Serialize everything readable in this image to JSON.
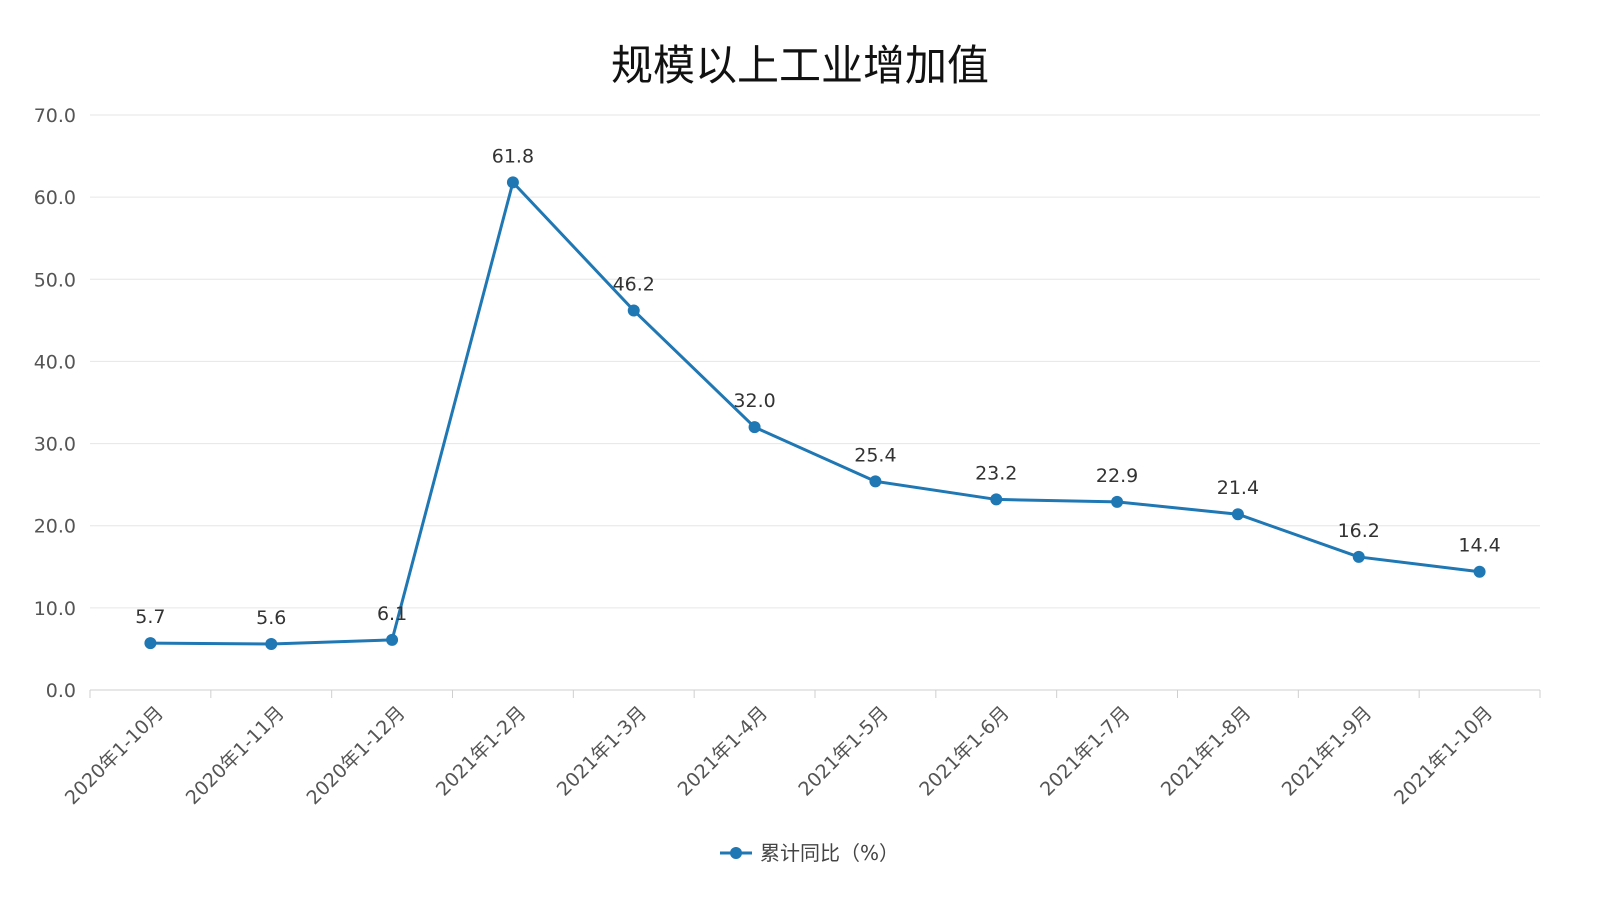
{
  "chart_data": {
    "type": "line",
    "title": "规模以上工业增加值",
    "categories": [
      "2020年1-10月",
      "2020年1-11月",
      "2020年1-12月",
      "2021年1-2月",
      "2021年1-3月",
      "2021年1-4月",
      "2021年1-5月",
      "2021年1-6月",
      "2021年1-7月",
      "2021年1-8月",
      "2021年1-9月",
      "2021年1-10月"
    ],
    "series": [
      {
        "name": "累计同比（%）",
        "values": [
          5.7,
          5.6,
          6.1,
          61.8,
          46.2,
          32.0,
          25.4,
          23.2,
          22.9,
          21.4,
          16.2,
          14.4
        ],
        "labels": [
          "5.7",
          "5.6",
          "6.1",
          "61.8",
          "46.2",
          "32.0",
          "25.4",
          "23.2",
          "22.9",
          "21.4",
          "16.2",
          "14.4"
        ],
        "color": "#1f77b4"
      }
    ],
    "y_ticks": [
      "0.0",
      "10.0",
      "20.0",
      "30.0",
      "40.0",
      "50.0",
      "60.0",
      "70.0"
    ],
    "ylim": [
      0,
      70
    ],
    "grid": true,
    "legend_position": "bottom-center",
    "xlabel": "",
    "ylabel": ""
  },
  "colors": {
    "series": "#1f77b4",
    "grid": "#e6e6e6",
    "axis": "#cfcfcf"
  }
}
